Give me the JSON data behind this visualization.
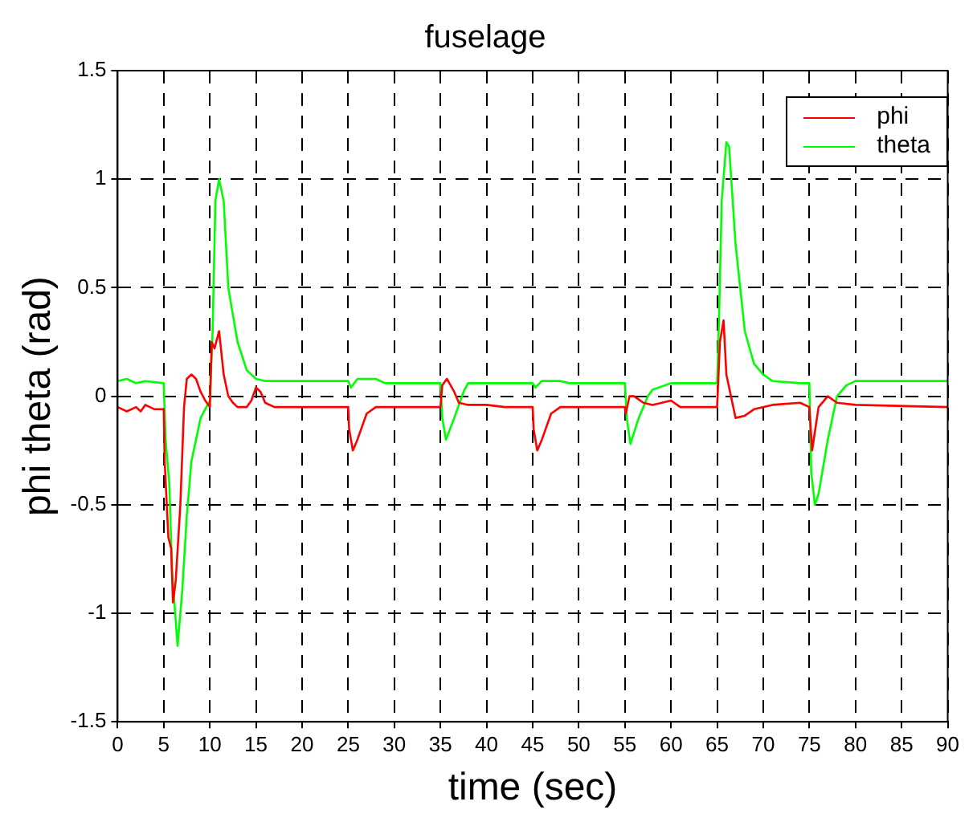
{
  "chart_data": {
    "type": "line",
    "title": "fuselage",
    "xlabel": "time (sec)",
    "ylabel": "phi theta (rad)",
    "xlim": [
      0,
      90
    ],
    "xticks": [
      0,
      5,
      10,
      15,
      20,
      25,
      30,
      35,
      40,
      45,
      50,
      55,
      60,
      65,
      70,
      75,
      80,
      85,
      90
    ],
    "ylim": [
      -1.5,
      1.5
    ],
    "yticks": [
      -1.5,
      -1,
      -0.5,
      0,
      0.5,
      1,
      1.5
    ],
    "grid": true,
    "legend": "top right",
    "line_style": "solid",
    "marker": "none",
    "series": [
      {
        "name": "phi",
        "color": "#ff0000",
        "x": [
          0,
          1,
          2,
          2.5,
          3,
          4,
          5,
          5.1,
          5.5,
          5.8,
          6,
          6.3,
          6.8,
          7.2,
          7.5,
          8,
          8.5,
          9,
          9.5,
          10,
          10.2,
          10.5,
          11,
          11.5,
          12,
          12.5,
          13,
          14,
          14.5,
          15,
          15.5,
          16,
          17,
          25,
          25.1,
          25.5,
          26,
          27,
          28,
          35,
          35.2,
          35.7,
          36.5,
          37,
          38,
          40,
          42,
          45,
          45.1,
          45.5,
          46,
          47,
          48,
          55,
          55.1,
          55.5,
          56,
          57,
          58,
          60,
          61,
          65,
          65.3,
          65.7,
          66,
          67,
          68,
          69,
          71,
          74,
          75,
          75.3,
          76,
          77,
          78,
          80,
          90
        ],
        "values": [
          -0.05,
          -0.07,
          -0.05,
          -0.07,
          -0.04,
          -0.06,
          -0.06,
          -0.3,
          -0.65,
          -0.7,
          -0.95,
          -0.85,
          -0.5,
          -0.05,
          0.08,
          0.1,
          0.08,
          0.02,
          -0.02,
          -0.05,
          0.25,
          0.22,
          0.3,
          0.1,
          0,
          -0.03,
          -0.05,
          -0.05,
          -0.02,
          0.04,
          0.02,
          -0.03,
          -0.05,
          -0.05,
          -0.15,
          -0.25,
          -0.2,
          -0.08,
          -0.05,
          -0.05,
          0.05,
          0.08,
          0.02,
          -0.03,
          -0.04,
          -0.04,
          -0.05,
          -0.05,
          -0.15,
          -0.25,
          -0.2,
          -0.08,
          -0.05,
          -0.05,
          -0.08,
          0,
          0,
          -0.03,
          -0.04,
          -0.02,
          -0.05,
          -0.05,
          0.25,
          0.35,
          0.1,
          -0.1,
          -0.09,
          -0.06,
          -0.04,
          -0.03,
          -0.05,
          -0.25,
          -0.05,
          0,
          -0.03,
          -0.04,
          -0.05
        ]
      },
      {
        "name": "theta",
        "color": "#00ff00",
        "x": [
          0,
          1,
          2,
          3,
          5,
          5.2,
          5.6,
          5.9,
          6.5,
          7,
          7.5,
          8,
          9,
          10,
          10.3,
          10.6,
          11,
          11.5,
          12,
          13,
          14,
          15,
          16,
          17,
          25,
          25.3,
          26,
          28,
          29,
          35,
          35.2,
          35.6,
          36.5,
          37.5,
          38,
          45,
          45.3,
          46,
          48,
          49,
          55,
          55.2,
          55.6,
          56.5,
          57.5,
          58,
          60,
          65,
          65.2,
          65.5,
          66,
          66.3,
          67,
          68,
          69,
          70,
          71,
          74,
          75,
          75.2,
          75.6,
          76,
          77,
          78,
          79,
          80,
          90
        ],
        "values": [
          0.07,
          0.08,
          0.06,
          0.07,
          0.06,
          -0.2,
          -0.4,
          -0.8,
          -1.15,
          -0.9,
          -0.55,
          -0.3,
          -0.1,
          -0.02,
          0.3,
          0.9,
          1,
          0.9,
          0.5,
          0.25,
          0.12,
          0.08,
          0.07,
          0.07,
          0.07,
          0.04,
          0.08,
          0.08,
          0.06,
          0.06,
          -0.1,
          -0.2,
          -0.1,
          0.02,
          0.06,
          0.06,
          0.04,
          0.07,
          0.07,
          0.06,
          0.06,
          -0.1,
          -0.22,
          -0.1,
          0,
          0.03,
          0.06,
          0.06,
          0.35,
          0.9,
          1.17,
          1.15,
          0.7,
          0.3,
          0.15,
          0.1,
          0.07,
          0.06,
          0.06,
          -0.35,
          -0.5,
          -0.45,
          -0.2,
          0,
          0.05,
          0.07,
          0.07
        ]
      }
    ]
  }
}
